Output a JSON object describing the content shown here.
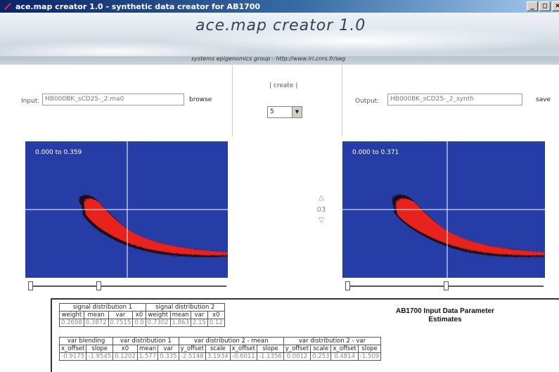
{
  "window": {
    "title": "ace.map creator 1.0 - synthetic data creator for AB1700",
    "buttons": [
      "_",
      "□",
      "×"
    ]
  },
  "banner": {
    "app_title": "ace.map creator 1.0",
    "subtitle": "systems epigenomics group - http://www.iri.cnrs.fr/seg"
  },
  "controls": {
    "input_label": "Input:",
    "input_value": "HB000BK_sCD25-_2.ma0",
    "browse_label": "browse",
    "create_label": "| create |",
    "select_value": "5",
    "output_label": "Output:",
    "output_value": "HB000BK_sCD25-_2_synth",
    "save_label": "save"
  },
  "plots": {
    "left_range": "0.000 to 0.359",
    "right_range": "0.000 to 0.371",
    "plane_number": "03",
    "up_arrow": "△",
    "down_arrow": "▽",
    "colors": {
      "background": "#263da8",
      "density": "#e8231c",
      "crosshair": "#ffffff"
    }
  },
  "parameters": {
    "heading": "AB1700 Input Data Parameter Estimates",
    "table1": {
      "groups": [
        {
          "label": "signal distribution 1",
          "span": 4
        },
        {
          "label": "signal distribution 2",
          "span": 4
        }
      ],
      "headers": [
        "weight",
        "mean",
        "var",
        "x0",
        "weight",
        "mean",
        "var",
        "x0"
      ],
      "values": [
        "0.2698",
        "0.3872",
        "0.7515",
        "0.0",
        "0.7302",
        "1.863",
        "2.15",
        "0.12"
      ]
    },
    "table2": {
      "groups": [
        {
          "label": "var blending",
          "span": 2
        },
        {
          "label": "var distribution 1",
          "span": 3
        },
        {
          "label": "var distribution 2 - mean",
          "span": 4
        },
        {
          "label": "var distribution 2 - var",
          "span": 4
        }
      ],
      "headers": [
        "x_offset",
        "slope",
        "x0",
        "mean",
        "var",
        "y_offset",
        "scale",
        "x_offset",
        "slope",
        "y_offset",
        "scale",
        "x_offset",
        "slope"
      ],
      "values": [
        "-0.9175",
        "-1.9545",
        "0.1202",
        "1.577",
        "0.335",
        "-2.5148",
        "3.1934",
        "-0.6011",
        "-1.1356",
        "0.0012",
        "0.253",
        "0.4814",
        "-1.509"
      ]
    }
  }
}
